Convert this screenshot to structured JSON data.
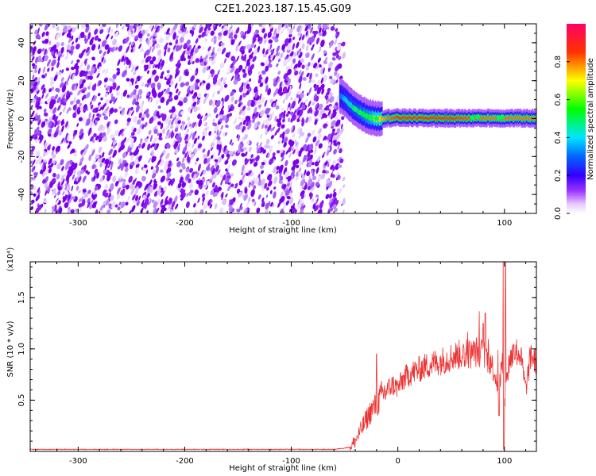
{
  "title": "C2E1.2023.187.15.45.G09",
  "colors": {
    "snr_line": "#ee3333",
    "spectrogram_noise": "#7a00ee",
    "frame": "#000000"
  },
  "colorbar": {
    "label": "Normalized spectral amplitude",
    "range": [
      0,
      1
    ],
    "ticks": [
      0.0,
      0.2,
      0.4,
      0.6,
      0.8
    ],
    "tick_labels": [
      "0.0",
      "0.2",
      "0.4",
      "0.6",
      "0.8"
    ],
    "colormap": "rainbow (white-purple-blue-cyan-green-yellow-red-magenta)"
  },
  "chart_data": [
    {
      "type": "heatmap",
      "name": "spectrogram",
      "xlabel": "Height of straight line (km)",
      "ylabel": "Frequency (Hz)",
      "xlim": [
        -345,
        130
      ],
      "ylim": [
        -50,
        50
      ],
      "x_ticks": [
        -300,
        -200,
        -100,
        0,
        100
      ],
      "x_tick_labels": [
        "-300",
        "-200",
        "-100",
        "0",
        "100"
      ],
      "y_ticks": [
        -40,
        -20,
        0,
        20,
        40
      ],
      "y_tick_labels": [
        "-40",
        "-20",
        "0",
        "20",
        "40"
      ],
      "noise_region_x": [
        -345,
        -55
      ],
      "signal_band": {
        "x": [
          -55,
          -50,
          -45,
          -40,
          -35,
          -30,
          -25,
          -20,
          -10,
          0,
          20,
          50,
          80,
          100,
          130
        ],
        "center_freq": [
          12,
          10,
          7,
          5,
          3,
          1.5,
          0.5,
          0,
          0.3,
          0.5,
          0.3,
          0.2,
          0.3,
          0.2,
          0.2
        ],
        "peak_amplitude": [
          0.3,
          0.4,
          0.45,
          0.45,
          0.5,
          0.55,
          0.6,
          0.7,
          0.8,
          0.85,
          0.85,
          0.85,
          0.8,
          0.8,
          0.8
        ]
      }
    },
    {
      "type": "line",
      "name": "snr",
      "xlabel": "Height of straight line (km)",
      "ylabel": "SNR (10 * v/v)",
      "y_multiplier": "(x10⁴)",
      "xlim": [
        -345,
        130
      ],
      "ylim": [
        0,
        1.85
      ],
      "x_ticks": [
        -300,
        -200,
        -100,
        0,
        100
      ],
      "x_tick_labels": [
        "-300",
        "-200",
        "-100",
        "0",
        "100"
      ],
      "y_ticks": [
        0.5,
        1.0,
        1.5
      ],
      "y_tick_labels": [
        "0.5",
        "1.0",
        "1.5"
      ],
      "series": [
        {
          "x": [
            -345,
            -300,
            -200,
            -100,
            -60,
            -45,
            -40,
            -35,
            -30,
            -25,
            -20,
            -15,
            -10,
            -5,
            0,
            5,
            10,
            20,
            30,
            40,
            50,
            60,
            70,
            75,
            80,
            85,
            90,
            95,
            98,
            100,
            102,
            105,
            110,
            115,
            120,
            125,
            130
          ],
          "y": [
            0.02,
            0.02,
            0.02,
            0.02,
            0.02,
            0.04,
            0.1,
            0.2,
            0.3,
            0.4,
            0.45,
            0.55,
            0.6,
            0.65,
            0.62,
            0.7,
            0.75,
            0.8,
            0.85,
            0.88,
            0.92,
            0.95,
            0.95,
            0.98,
            0.95,
            0.9,
            0.8,
            0.6,
            0.9,
            0.4,
            0.7,
            0.9,
            0.98,
            0.95,
            0.6,
            0.95,
            0.85
          ],
          "spikes": [
            {
              "x": -20,
              "y": 0.95
            },
            {
              "x": 80,
              "y": 1.25
            },
            {
              "x": 82,
              "y": 1.35
            },
            {
              "x": 99,
              "y": 1.85
            },
            {
              "x": 101,
              "y": 1.85
            }
          ],
          "dips": [
            {
              "x": 99.5,
              "y": 0.02
            },
            {
              "x": 95,
              "y": 0.35
            }
          ]
        }
      ]
    }
  ]
}
